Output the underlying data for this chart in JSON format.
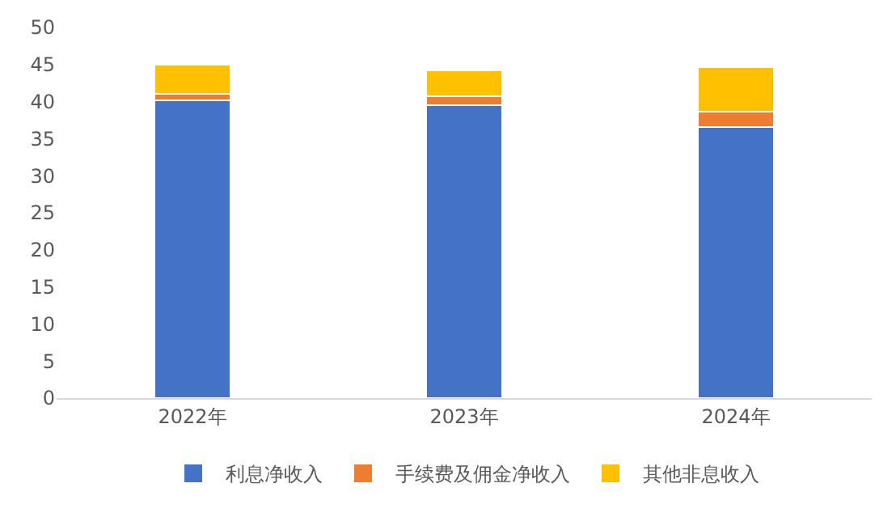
{
  "chart_data": {
    "type": "bar",
    "stacked": true,
    "categories": [
      "2022年",
      "2023年",
      "2024年"
    ],
    "series": [
      {
        "name": "利息净收入",
        "color": "#4472c4",
        "values": [
          40.2,
          39.5,
          36.6
        ]
      },
      {
        "name": "手续费及佣金净收入",
        "color": "#ed7d31",
        "values": [
          0.8,
          1.2,
          2.0
        ]
      },
      {
        "name": "其他非息收入",
        "color": "#ffc000",
        "values": [
          4.0,
          3.5,
          6.0
        ]
      }
    ],
    "ylim": [
      0,
      50
    ],
    "yticks": [
      0,
      5,
      10,
      15,
      20,
      25,
      30,
      35,
      40,
      45,
      50
    ],
    "legend": "bottom"
  }
}
